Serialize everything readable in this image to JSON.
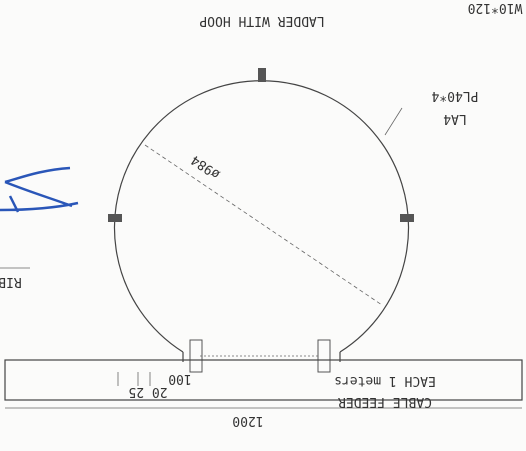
{
  "drawing": {
    "title": "LADDER WITH HOOP",
    "section": "W10*120",
    "member": "LA4",
    "plate": "PL40*4",
    "diameter": "ø984",
    "width": "1200",
    "spacing": "100",
    "spacing_small": "20 25",
    "cable_feeder": "CABLE FEEDER",
    "cable_each": "EACH 1 meters",
    "rib": "RIB"
  }
}
